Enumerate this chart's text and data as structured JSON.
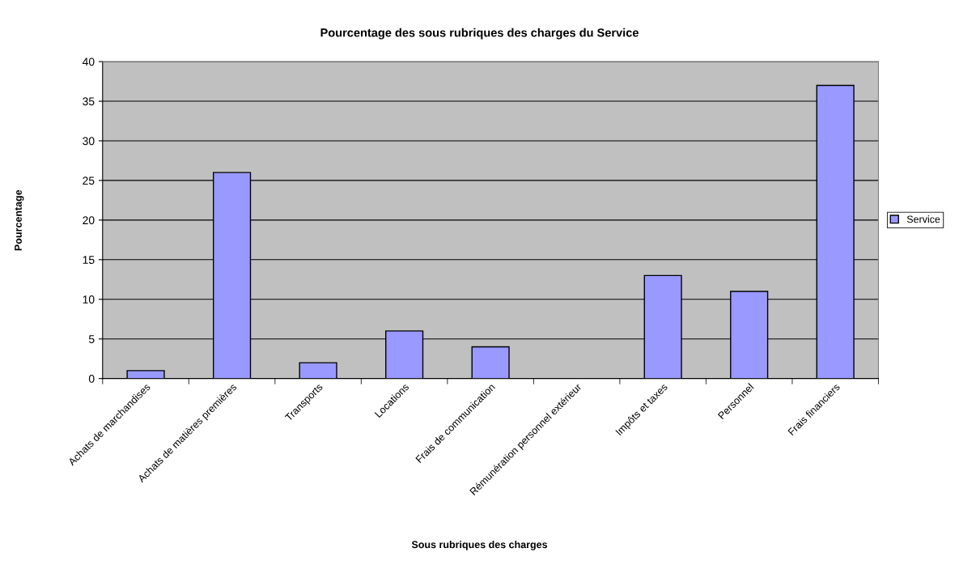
{
  "chart_data": {
    "type": "bar",
    "title": "Pourcentage des sous rubriques des charges du Service",
    "xlabel": "Sous rubriques des charges",
    "ylabel": "Pourcentage",
    "categories": [
      "Achats de marchandises",
      "Achats de matières premières",
      "Transports",
      "Locations",
      "Frais de communication",
      "Rémunération personnel extérieur",
      "Impôts et taxes",
      "Personnel",
      "Frais financiers"
    ],
    "series": [
      {
        "name": "Service",
        "color": "#9999ff",
        "values": [
          1,
          26,
          2,
          6,
          4,
          0,
          13,
          11,
          37
        ]
      }
    ],
    "ylim": [
      0,
      40
    ],
    "yticks": [
      0,
      5,
      10,
      15,
      20,
      25,
      30,
      35,
      40
    ],
    "grid": "y",
    "legend": "right"
  }
}
